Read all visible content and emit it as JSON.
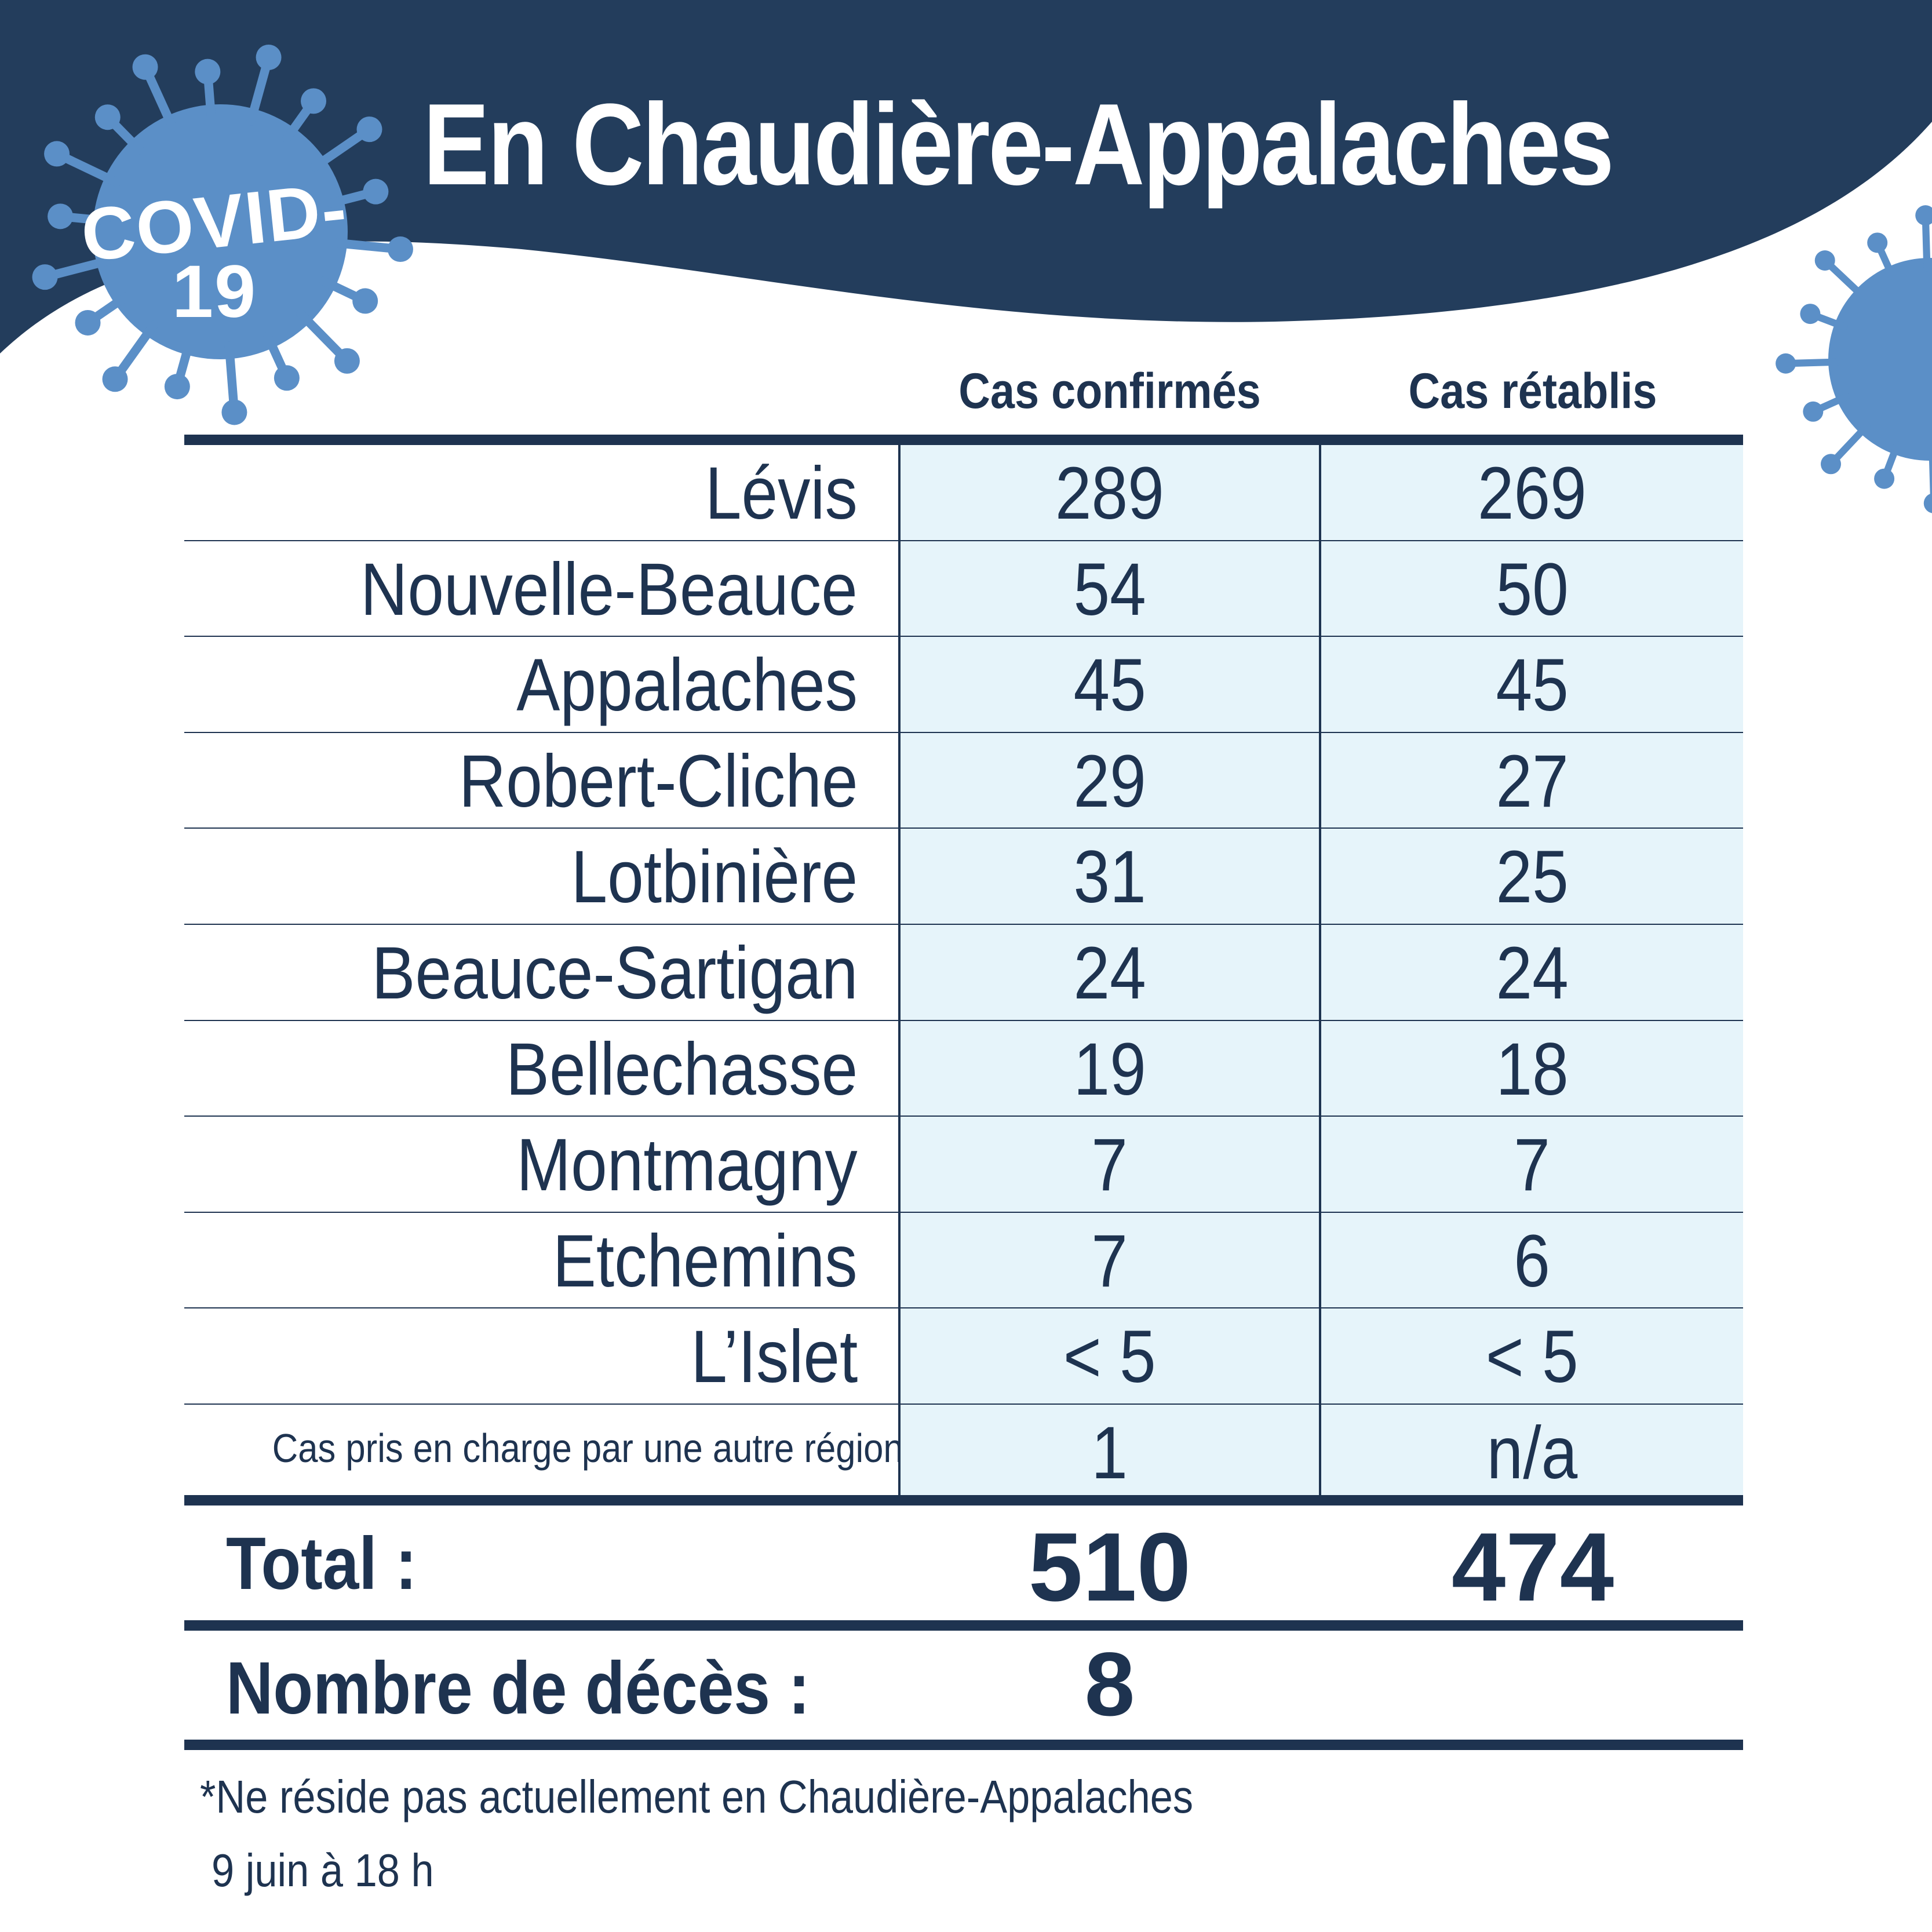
{
  "colors": {
    "navy": "#233d5c",
    "virus_blue": "#5b8fc7",
    "cell_fill": "#e6f4fa",
    "text": "#1e3350"
  },
  "badge": {
    "line1": "COVID-",
    "line2": "19"
  },
  "title": "En Chaudière-Appalaches",
  "chart_data": {
    "type": "table",
    "columns": [
      "",
      "Cas confirmés",
      "Cas rétablis"
    ],
    "rows": [
      {
        "name": "Lévis",
        "confirmed": "289",
        "recovered": "269"
      },
      {
        "name": "Nouvelle-Beauce",
        "confirmed": "54",
        "recovered": "50"
      },
      {
        "name": "Appalaches",
        "confirmed": "45",
        "recovered": "45"
      },
      {
        "name": "Robert-Cliche",
        "confirmed": "29",
        "recovered": "27"
      },
      {
        "name": "Lotbinière",
        "confirmed": "31",
        "recovered": "25"
      },
      {
        "name": "Beauce-Sartigan",
        "confirmed": "24",
        "recovered": "24"
      },
      {
        "name": "Bellechasse",
        "confirmed": "19",
        "recovered": "18"
      },
      {
        "name": "Montmagny",
        "confirmed": "7",
        "recovered": "7"
      },
      {
        "name": "Etchemins",
        "confirmed": "7",
        "recovered": "6"
      },
      {
        "name": "L’Islet",
        "confirmed": "< 5",
        "recovered": "< 5"
      },
      {
        "name": "Cas pris en charge par une autre région*",
        "confirmed": "1",
        "recovered": "n/a",
        "small": true
      }
    ],
    "total": {
      "label": "Total :",
      "confirmed": "510",
      "recovered": "474"
    },
    "deaths": {
      "label": "Nombre de décès :",
      "value": "8"
    }
  },
  "footnote": "*Ne réside pas actuellement en Chaudière-Appalaches",
  "date": "9 juin à 18 h"
}
